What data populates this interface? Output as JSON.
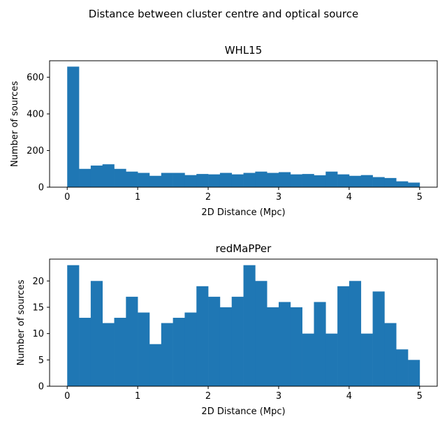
{
  "figure": {
    "suptitle": "Distance between cluster centre and optical source",
    "bar_color": "#1f77b4"
  },
  "chart_data": [
    {
      "type": "bar",
      "title": "WHL15",
      "xlabel": "2D Distance (Mpc)",
      "ylabel": "Number of sources",
      "bin_start": 0,
      "bin_width": 0.1667,
      "values": [
        658,
        100,
        118,
        125,
        100,
        85,
        78,
        62,
        78,
        78,
        66,
        72,
        70,
        78,
        70,
        78,
        85,
        78,
        82,
        70,
        72,
        65,
        85,
        70,
        62,
        66,
        55,
        50,
        32,
        25
      ],
      "xlim": [
        -0.25,
        5.25
      ],
      "ylim": [
        0,
        690
      ],
      "xticks": [
        0,
        1,
        2,
        3,
        4,
        5
      ],
      "yticks": [
        0,
        200,
        400,
        600
      ]
    },
    {
      "type": "bar",
      "title": "redMaPPer",
      "xlabel": "2D Distance (Mpc)",
      "ylabel": "Number of sources",
      "bin_start": 0,
      "bin_width": 0.1667,
      "values": [
        23,
        13,
        20,
        12,
        13,
        17,
        14,
        8,
        12,
        13,
        14,
        19,
        17,
        15,
        17,
        23,
        20,
        15,
        16,
        15,
        10,
        16,
        10,
        19,
        20,
        10,
        18,
        12,
        7,
        5
      ],
      "xlim": [
        -0.25,
        5.25
      ],
      "ylim": [
        0,
        24.15
      ],
      "xticks": [
        0,
        1,
        2,
        3,
        4,
        5
      ],
      "yticks": [
        0,
        5,
        10,
        15,
        20
      ]
    }
  ]
}
